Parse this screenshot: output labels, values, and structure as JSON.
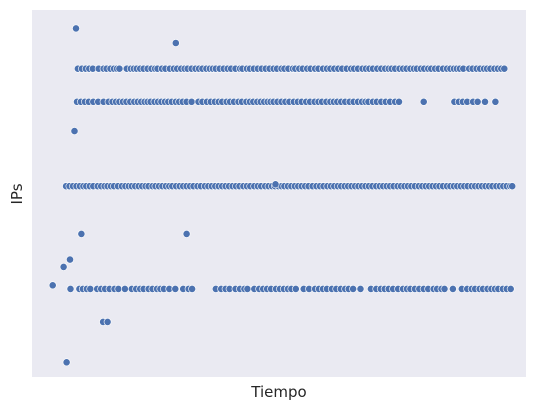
{
  "chart_data": {
    "type": "scatter",
    "title": "",
    "xlabel": "Tiempo",
    "ylabel": "IPs",
    "xlim": [
      0,
      1000
    ],
    "ylim": [
      0,
      100
    ],
    "grid": false,
    "background_color": "#eaeaf2",
    "marker_color": "#4c72b0",
    "marker_edge_color": "#ffffff",
    "series": [
      {
        "rows": [
          {
            "y": 95,
            "x": [
              89
            ]
          },
          {
            "y": 91,
            "x": [
              291
            ]
          },
          {
            "y": 84,
            "x": [
              93,
              101,
              109,
              116,
              123,
              135,
              145,
              151,
              159,
              166,
              172,
              177,
              192,
              200,
              206,
              212,
              219,
              226,
              234,
              242,
              249,
              254,
              263,
              270,
              279,
              287,
              294,
              302,
              309,
              315,
              323,
              331,
              338,
              345,
              353,
              360,
              366,
              372,
              380,
              388,
              396,
              403,
              412,
              421,
              426,
              435,
              441,
              449,
              457,
              465,
              473,
              481,
              489,
              496,
              505,
              511,
              519,
              528,
              533,
              541,
              548,
              557,
              564,
              573,
              580,
              589,
              597,
              604,
              612,
              620,
              628,
              637,
              646,
              652,
              660,
              669,
              676,
              683,
              690,
              699,
              707,
              715,
              722,
              728,
              735,
              744,
              751,
              758,
              766,
              773,
              779,
              787,
              794,
              802,
              808,
              816,
              823,
              832,
              840,
              847,
              854,
              860,
              866,
              873,
              885,
              892,
              900,
              907,
              915,
              921,
              928,
              936,
              943,
              950,
              956
            ]
          },
          {
            "y": 75,
            "x": [
              91,
              99,
              107,
              115,
              124,
              134,
              145,
              155,
              163,
              170,
              177,
              184,
              191,
              199,
              207,
              214,
              221,
              228,
              234,
              240,
              248,
              255,
              262,
              269,
              276,
              283,
              291,
              298,
              305,
              313,
              323,
              337,
              345,
              354,
              362,
              370,
              378,
              385,
              394,
              401,
              409,
              418,
              425,
              434,
              441,
              448,
              456,
              463,
              470,
              477,
              483,
              489,
              497,
              505,
              513,
              521,
              530,
              538,
              546,
              555,
              563,
              572,
              580,
              587,
              596,
              604,
              611,
              618,
              626,
              634,
              643,
              651,
              660,
              668,
              675,
              681,
              690,
              698,
              707,
              716,
              725,
              735,
              743,
              793,
              855,
              864,
              872,
              881,
              893,
              902,
              917,
              938
            ]
          },
          {
            "y": 67,
            "x": [
              86
            ]
          },
          {
            "y": 52,
            "x": [
              69,
              76,
              83,
              90,
              97,
              104,
              110,
              117,
              124,
              133,
              140,
              147,
              153,
              160,
              166,
              174,
              182,
              189,
              196,
              202,
              209,
              216,
              223,
              230,
              236,
              244,
              250,
              257,
              264,
              271,
              278,
              284,
              292,
              299,
              306,
              313,
              320,
              327,
              335,
              342,
              350,
              357,
              364,
              371,
              378,
              385,
              392,
              399,
              406,
              413,
              420,
              428,
              435,
              442,
              450,
              457,
              464,
              472,
              479,
              486,
              492,
              499,
              505,
              511,
              518,
              525,
              532,
              539,
              546,
              553,
              560,
              568,
              576,
              583,
              590,
              598,
              605,
              612,
              619,
              626,
              633,
              640,
              647,
              654,
              661,
              668,
              675,
              682,
              689,
              697,
              704,
              711,
              718,
              725,
              732,
              740,
              747,
              754,
              761,
              768,
              775,
              783,
              790,
              797,
              804,
              811,
              818,
              825,
              832,
              840,
              847,
              854,
              861,
              868,
              875,
              882,
              890,
              897,
              904,
              911,
              918,
              925,
              932,
              940,
              947,
              954,
              961,
              968,
              972
            ]
          },
          {
            "y": 52.5,
            "x": [
              493
            ]
          },
          {
            "y": 39,
            "x": [
              100,
              313
            ]
          },
          {
            "y": 32,
            "x": [
              77
            ]
          },
          {
            "y": 30,
            "x": [
              64
            ]
          },
          {
            "y": 25,
            "x": [
              42
            ]
          },
          {
            "y": 24,
            "x": [
              78,
              96,
              103,
              111,
              118,
              132,
              140,
              148,
              157,
              167,
              175,
              188,
              202,
              211,
              219,
              226,
              236,
              244,
              253,
              260,
              267,
              278,
              290,
              306,
              317,
              324,
              372,
              383,
              392,
              400,
              412,
              421,
              430,
              436,
              450,
              460,
              468,
              476,
              484,
              494,
              502,
              510,
              518,
              525,
              534,
              550,
              561,
              573,
              581,
              589,
              597,
              607,
              616,
              625,
              634,
              641,
              650,
              665,
              686,
              697,
              706,
              714,
              722,
              731,
              741,
              751,
              759,
              766,
              775,
              784,
              793,
              802,
              813,
              820,
              829,
              835,
              852,
              870,
              881,
              890,
              897,
              906,
              913,
              922,
              930,
              937,
              944,
              953,
              961,
              969
            ]
          },
          {
            "y": 15,
            "x": [
              144,
              153
            ]
          },
          {
            "y": 4,
            "x": [
              70
            ]
          }
        ]
      }
    ]
  }
}
